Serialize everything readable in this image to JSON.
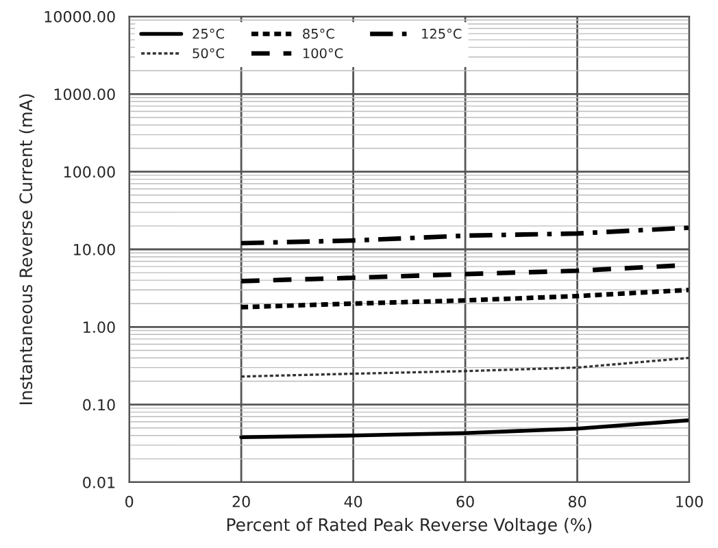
{
  "chart_data": {
    "type": "line",
    "xlabel": "Percent of Rated Peak Reverse Voltage (%)",
    "ylabel": "Instantaneous Reverse Current (mA)",
    "x": [
      20,
      40,
      60,
      80,
      100
    ],
    "series": [
      {
        "name": "25°C",
        "color": "#000000",
        "line_style": "solid",
        "values": [
          0.038,
          0.04,
          0.043,
          0.049,
          0.063
        ]
      },
      {
        "name": "50°C",
        "color": "#333333",
        "line_style": "dotted",
        "values": [
          0.23,
          0.25,
          0.27,
          0.3,
          0.4
        ]
      },
      {
        "name": "85°C",
        "color": "#000000",
        "line_style": "dotted",
        "values": [
          1.8,
          2.0,
          2.2,
          2.5,
          3.0
        ]
      },
      {
        "name": "100°C",
        "color": "#000000",
        "line_style": "dashed",
        "values": [
          3.9,
          4.3,
          4.8,
          5.3,
          6.3
        ]
      },
      {
        "name": "125°C",
        "color": "#000000",
        "line_style": "dashdot",
        "values": [
          12,
          13,
          15,
          16,
          19
        ]
      }
    ],
    "log": "y",
    "xlim": [
      0,
      100
    ],
    "xticks": [
      0,
      20,
      40,
      60,
      80,
      100
    ],
    "ylim": [
      0.01,
      10000
    ],
    "yticks": [
      {
        "value": 0.01,
        "label": "0.01"
      },
      {
        "value": 0.1,
        "label": "0.10"
      },
      {
        "value": 1,
        "label": "1.00"
      },
      {
        "value": 10,
        "label": "10.00"
      },
      {
        "value": 100,
        "label": "100.00"
      },
      {
        "value": 1000,
        "label": "1000.00"
      },
      {
        "value": 10000,
        "label": "10000.00"
      }
    ],
    "grid": true,
    "legend": "top left",
    "marker": "none"
  }
}
